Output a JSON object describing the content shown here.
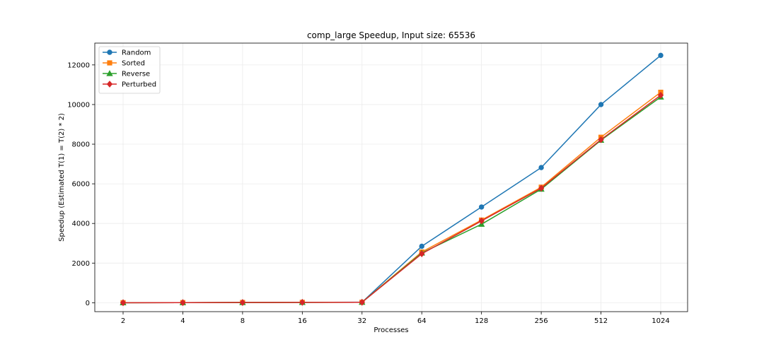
{
  "chart_data": {
    "type": "line",
    "title": "comp_large Speedup, Input size: 65536",
    "xlabel": "Processes",
    "ylabel": "Speedup (Estimated T(1) = T(2) * 2)",
    "categories": [
      "2",
      "4",
      "8",
      "16",
      "32",
      "64",
      "128",
      "256",
      "512",
      "1024"
    ],
    "ylim": [
      -450,
      13100
    ],
    "yticks": [
      0,
      2000,
      4000,
      6000,
      8000,
      10000,
      12000
    ],
    "grid": true,
    "legend_position": "top-left",
    "series": [
      {
        "name": "Random",
        "color": "#1f77b4",
        "marker": "circle",
        "values": [
          2,
          6,
          14,
          20,
          25,
          2850,
          4830,
          6820,
          10000,
          12480
        ]
      },
      {
        "name": "Sorted",
        "color": "#ff7f0e",
        "marker": "square",
        "values": [
          2,
          6,
          13,
          19,
          24,
          2560,
          4170,
          5830,
          8350,
          10620
        ]
      },
      {
        "name": "Reverse",
        "color": "#2ca02c",
        "marker": "triangle",
        "values": [
          2,
          6,
          13,
          19,
          24,
          2510,
          3960,
          5730,
          8200,
          10380
        ]
      },
      {
        "name": "Perturbed",
        "color": "#d62728",
        "marker": "diamond",
        "values": [
          2,
          6,
          13,
          19,
          24,
          2470,
          4130,
          5780,
          8230,
          10470
        ]
      }
    ]
  }
}
